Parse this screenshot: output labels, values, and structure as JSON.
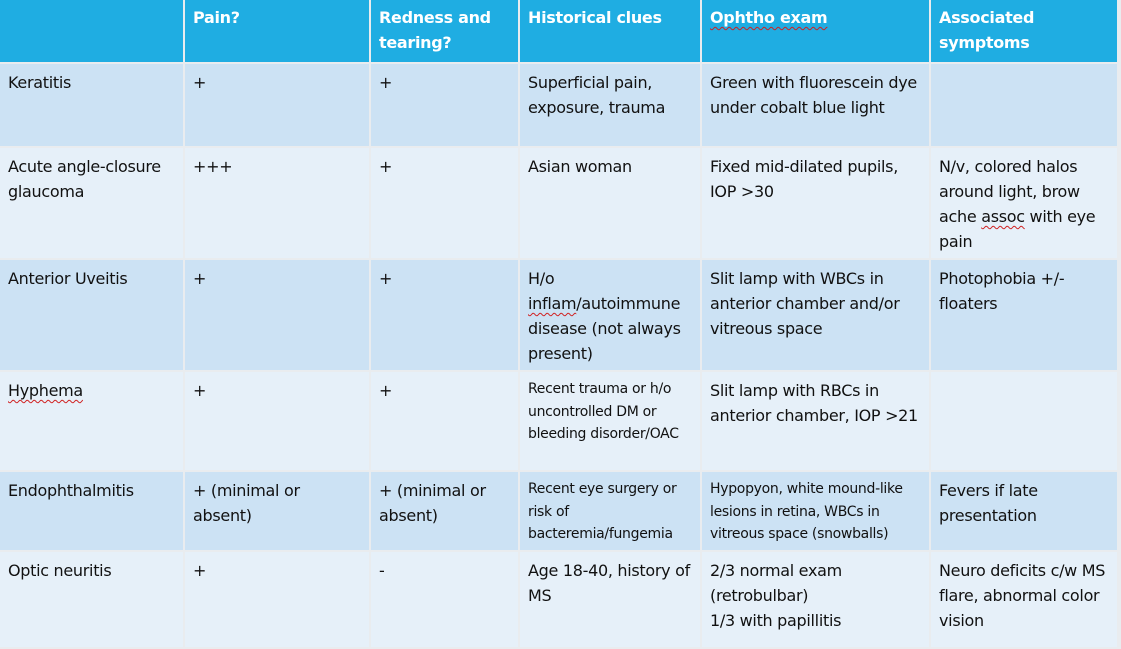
{
  "headers": [
    "",
    "Pain?",
    "Redness and tearing?",
    "Historical clues",
    "Ophtho exam",
    "Associated symptoms"
  ],
  "rows": [
    {
      "condition": "Keratitis",
      "pain": "+",
      "redness": "+",
      "history": "Superficial pain, exposure, trauma",
      "exam": "Green with fluorescein dye under cobalt blue light",
      "symptoms": ""
    },
    {
      "condition": "Acute angle-closure glaucoma",
      "pain": "+++",
      "redness": "+",
      "history": "Asian woman",
      "exam": "Fixed mid-dilated pupils, IOP >30",
      "symptoms": "N/v, colored halos around light, brow ache assoc with eye pain"
    },
    {
      "condition": "Anterior Uveitis",
      "pain": "+",
      "redness": "+",
      "history": "H/o inflam/autoimmune disease (not always present)",
      "exam": "Slit lamp with WBCs in anterior chamber and/or vitreous space",
      "symptoms": "Photophobia +/- floaters"
    },
    {
      "condition": "Hyphema",
      "pain": "+",
      "redness": "+",
      "history": "Recent trauma or h/o uncontrolled DM or bleeding disorder/OAC",
      "exam": "Slit lamp with RBCs in anterior chamber, IOP >21",
      "symptoms": ""
    },
    {
      "condition": "Endophthalmitis",
      "pain": "+ (minimal or absent)",
      "redness": "+ (minimal or absent)",
      "history": "Recent eye surgery or risk of bacteremia/fungemia",
      "exam": "Hypopyon, white mound-like lesions in retina, WBCs in vitreous space (snowballs)",
      "symptoms": "Fevers if late presentation"
    },
    {
      "condition": "Optic neuritis",
      "pain": "+",
      "redness": "-",
      "history": "Age 18-40, history of MS",
      "exam": "2/3 normal exam (retrobulbar)\n1/3 with papillitis",
      "symptoms": "Neuro deficits c/w MS flare, abnormal color vision"
    }
  ],
  "colors": {
    "header": "#1fade2",
    "row_odd": "#cce2f4",
    "row_even": "#e6f0f9"
  }
}
